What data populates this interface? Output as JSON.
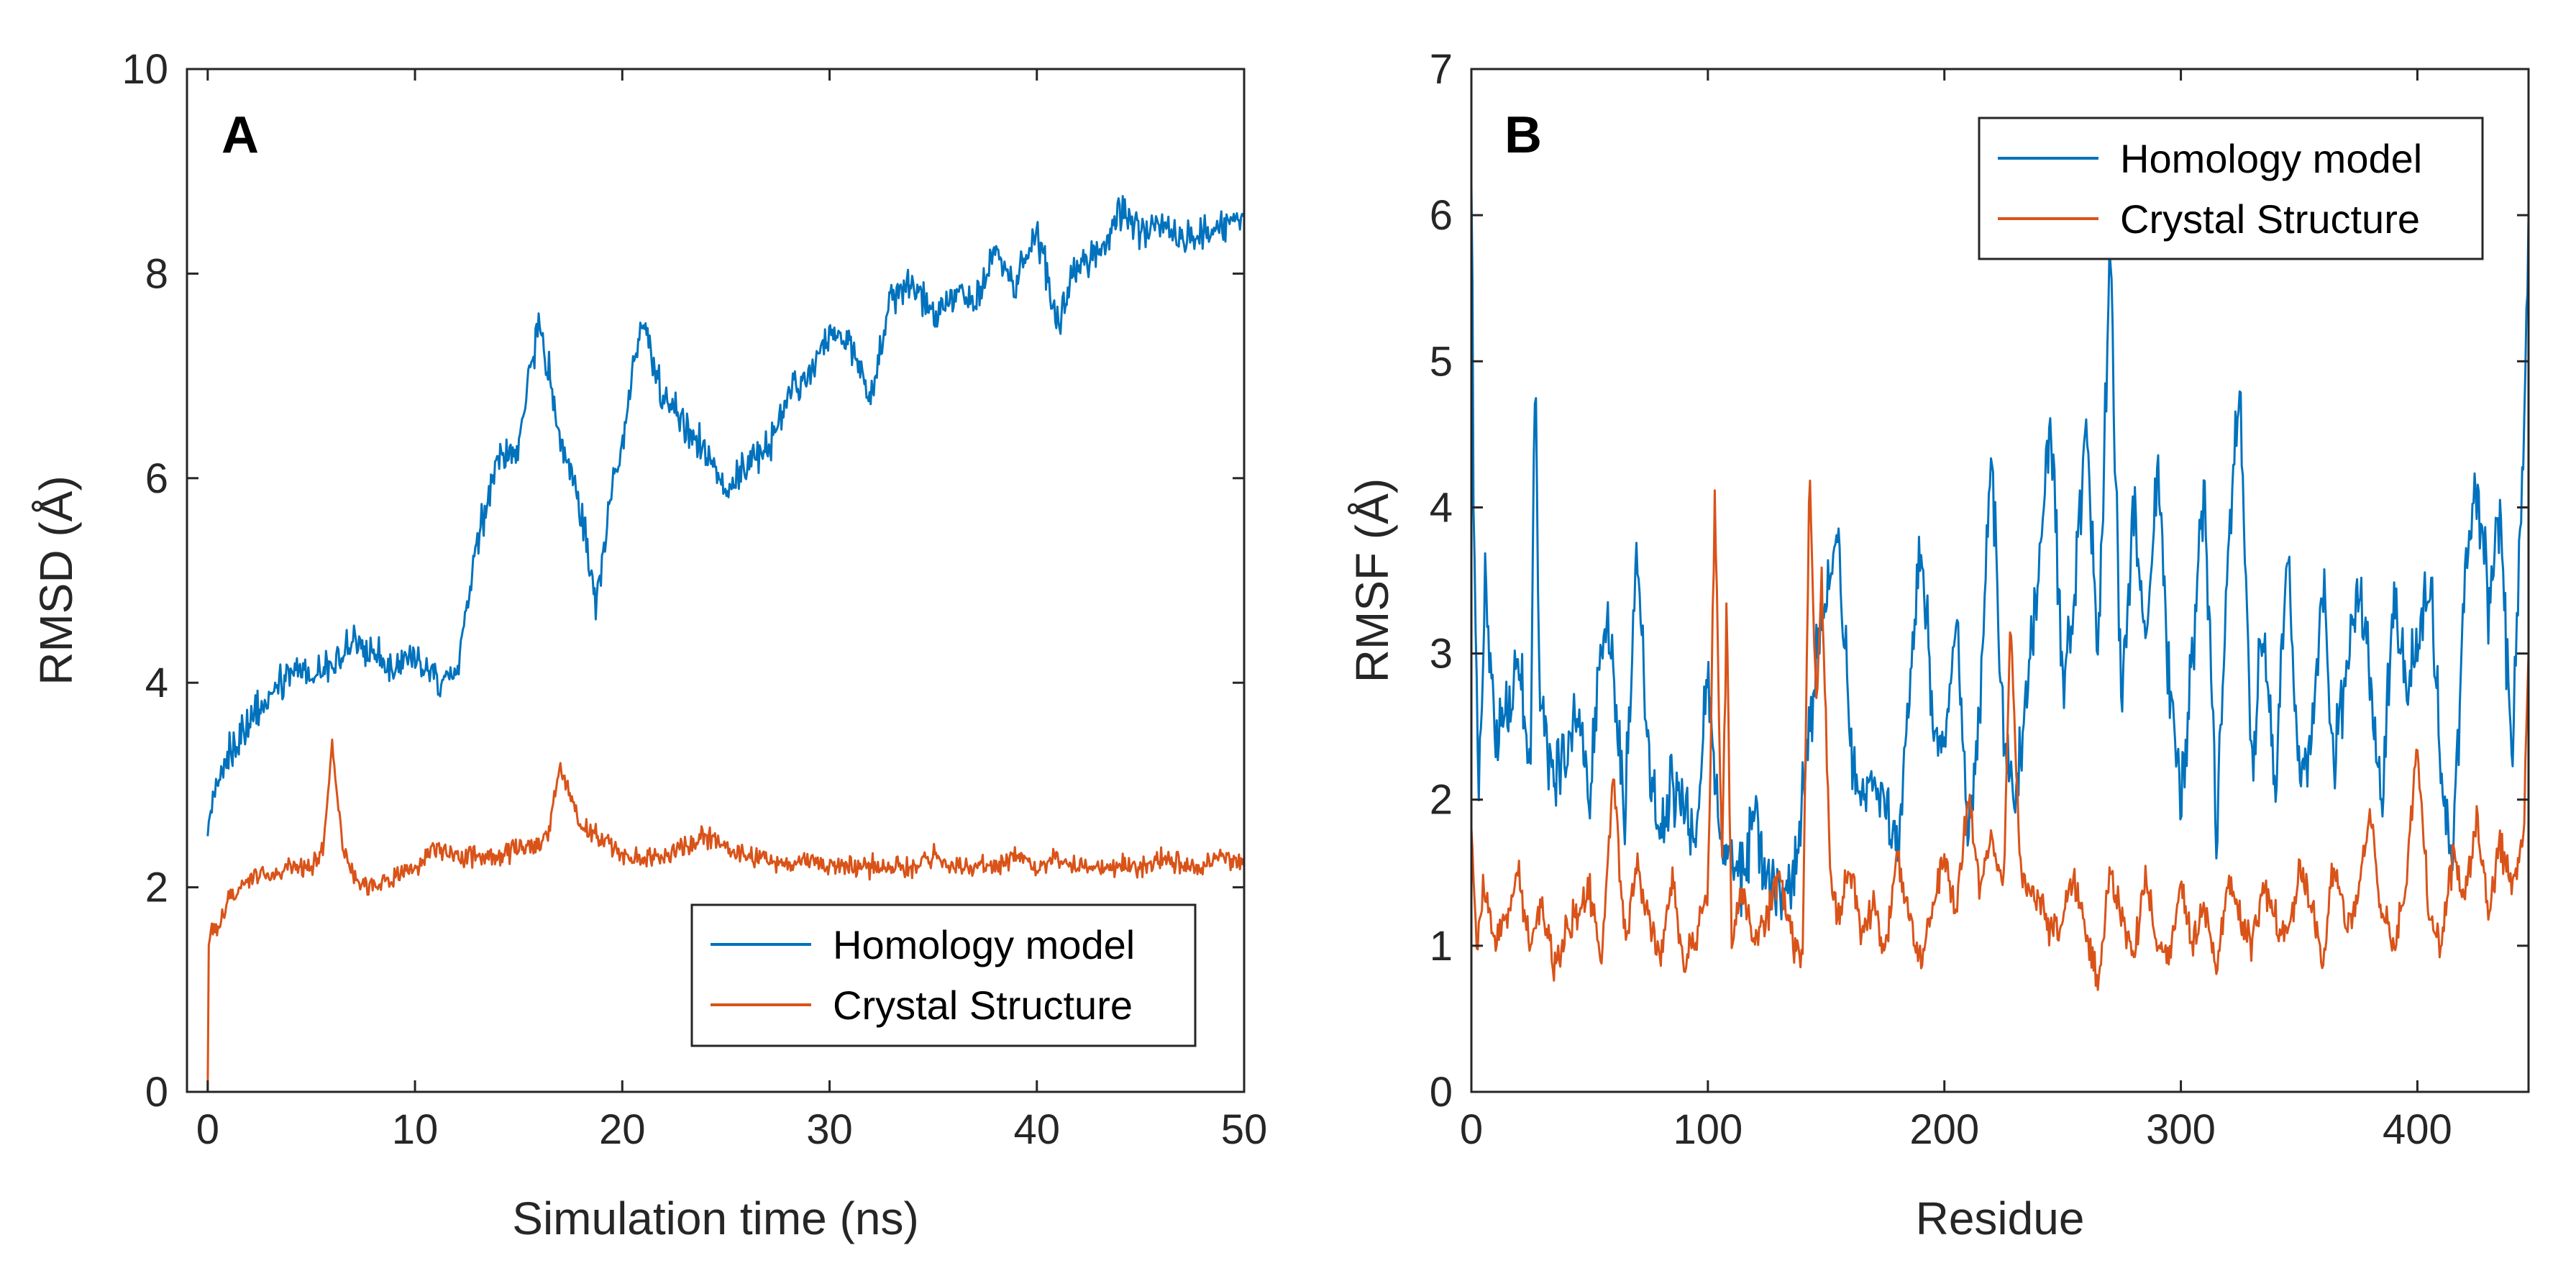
{
  "chart_data": [
    {
      "type": "line",
      "panel_label": "A",
      "xlabel": "Simulation time (ns)",
      "ylabel": "RMSD (Å)",
      "xlim": [
        -1,
        50
      ],
      "ylim": [
        0,
        10
      ],
      "xticks": [
        0,
        10,
        20,
        30,
        40,
        50
      ],
      "yticks": [
        0,
        2,
        4,
        6,
        8,
        10
      ],
      "grid": false,
      "legend_position": "bottom-right",
      "series": [
        {
          "name": "Homology model",
          "color": "#0072BD",
          "noise": 0.18,
          "x": [
            0,
            0.3,
            1,
            2,
            3,
            4,
            5,
            6,
            7,
            8,
            9,
            10,
            11,
            12,
            13,
            14,
            15,
            16,
            17,
            18,
            18.7,
            19.5,
            20,
            21,
            22,
            23,
            24,
            25,
            26,
            27,
            28,
            29,
            30,
            31,
            32,
            33,
            34,
            35,
            36,
            37,
            38,
            39,
            40,
            41,
            42,
            43,
            44,
            45,
            46,
            47,
            48,
            49,
            50
          ],
          "values": [
            2.5,
            3.0,
            3.3,
            3.6,
            3.9,
            4.1,
            4.1,
            4.2,
            4.4,
            4.3,
            4.1,
            4.3,
            4.0,
            4.1,
            5.4,
            6.2,
            6.3,
            7.6,
            6.4,
            5.7,
            4.8,
            5.8,
            6.4,
            7.6,
            6.8,
            6.5,
            6.3,
            5.9,
            6.1,
            6.3,
            6.8,
            7.0,
            7.4,
            7.3,
            6.8,
            7.8,
            7.9,
            7.6,
            7.8,
            7.7,
            8.2,
            7.9,
            8.4,
            7.5,
            8.1,
            8.2,
            8.6,
            8.4,
            8.5,
            8.3,
            8.4,
            8.5,
            8.6
          ]
        },
        {
          "name": "Crystal Structure",
          "color": "#D95319",
          "noise": 0.1,
          "x": [
            0,
            0.05,
            0.2,
            0.5,
            1,
            2,
            3,
            4,
            5,
            5.6,
            6,
            6.5,
            7,
            8,
            9,
            10,
            11,
            12,
            13,
            14,
            15,
            16,
            16.5,
            17,
            18,
            19,
            20,
            21,
            22,
            23,
            24,
            25,
            26,
            27,
            28,
            29,
            30,
            31,
            32,
            33,
            34,
            35,
            36,
            37,
            38,
            39,
            40,
            41,
            42,
            43,
            44,
            45,
            46,
            47,
            48,
            49,
            50
          ],
          "values": [
            0.0,
            1.4,
            1.6,
            1.6,
            1.9,
            2.1,
            2.1,
            2.2,
            2.2,
            2.4,
            3.4,
            2.4,
            2.1,
            2.0,
            2.1,
            2.2,
            2.4,
            2.3,
            2.3,
            2.3,
            2.4,
            2.4,
            2.6,
            3.2,
            2.6,
            2.5,
            2.3,
            2.3,
            2.3,
            2.4,
            2.5,
            2.4,
            2.3,
            2.3,
            2.2,
            2.3,
            2.2,
            2.2,
            2.2,
            2.2,
            2.2,
            2.3,
            2.2,
            2.2,
            2.2,
            2.3,
            2.2,
            2.3,
            2.2,
            2.2,
            2.2,
            2.2,
            2.3,
            2.2,
            2.2,
            2.3,
            2.2
          ]
        }
      ]
    },
    {
      "type": "line",
      "panel_label": "B",
      "xlabel": "Residue",
      "ylabel": "RMSF (Å)",
      "xlim": [
        0,
        447
      ],
      "ylim": [
        0,
        7
      ],
      "xticks": [
        0,
        100,
        200,
        300,
        400
      ],
      "yticks": [
        0,
        1,
        2,
        3,
        4,
        5,
        6,
        7
      ],
      "grid": false,
      "legend_position": "top-right",
      "series": [
        {
          "name": "Homology model",
          "color": "#0072BD",
          "noise": 0.25,
          "x": [
            0,
            1,
            3,
            6,
            10,
            15,
            20,
            25,
            27,
            29,
            35,
            40,
            45,
            50,
            55,
            60,
            65,
            70,
            75,
            80,
            85,
            90,
            95,
            100,
            105,
            110,
            115,
            120,
            125,
            130,
            135,
            140,
            145,
            150,
            155,
            160,
            165,
            170,
            175,
            180,
            185,
            190,
            195,
            200,
            205,
            210,
            215,
            220,
            225,
            230,
            235,
            240,
            245,
            250,
            255,
            260,
            265,
            270,
            275,
            280,
            285,
            290,
            295,
            300,
            305,
            310,
            315,
            320,
            325,
            330,
            335,
            340,
            345,
            350,
            355,
            360,
            365,
            370,
            375,
            380,
            385,
            390,
            395,
            400,
            405,
            410,
            415,
            420,
            425,
            430,
            435,
            440,
            445,
            447
          ],
          "values": [
            6.2,
            4.0,
            2.0,
            3.5,
            2.4,
            2.6,
            3.0,
            2.2,
            5.1,
            2.6,
            2.1,
            2.3,
            2.6,
            2.0,
            3.2,
            2.9,
            1.9,
            3.7,
            2.2,
            1.8,
            2.1,
            1.9,
            1.7,
            2.9,
            1.7,
            1.6,
            1.5,
            1.9,
            1.4,
            1.5,
            1.3,
            2.0,
            2.9,
            3.4,
            3.9,
            2.4,
            2.0,
            2.2,
            2.0,
            1.6,
            2.6,
            3.8,
            2.6,
            2.4,
            3.2,
            1.8,
            2.6,
            4.4,
            2.4,
            2.0,
            2.8,
            3.6,
            4.6,
            2.8,
            3.4,
            4.6,
            3.0,
            5.8,
            2.6,
            4.1,
            3.0,
            4.3,
            2.8,
            2.0,
            3.0,
            4.2,
            1.8,
            3.8,
            4.7,
            2.2,
            3.2,
            2.0,
            3.7,
            2.2,
            2.4,
            3.4,
            2.2,
            3.0,
            3.5,
            2.8,
            1.9,
            3.4,
            2.8,
            3.0,
            3.6,
            2.2,
            1.6,
            3.4,
            4.1,
            3.4,
            4.0,
            2.2,
            4.5,
            6.0
          ]
        },
        {
          "name": "Crystal Structure",
          "color": "#D95319",
          "noise": 0.12,
          "x": [
            0,
            2,
            5,
            10,
            15,
            20,
            25,
            30,
            35,
            40,
            45,
            50,
            55,
            60,
            65,
            70,
            75,
            80,
            85,
            90,
            95,
            100,
            103,
            106,
            108,
            110,
            115,
            120,
            125,
            130,
            135,
            140,
            143,
            146,
            148,
            152,
            155,
            160,
            165,
            170,
            175,
            180,
            185,
            190,
            195,
            200,
            205,
            210,
            215,
            220,
            225,
            228,
            232,
            240,
            245,
            250,
            255,
            260,
            265,
            270,
            275,
            280,
            285,
            290,
            295,
            300,
            305,
            310,
            315,
            320,
            325,
            330,
            335,
            340,
            345,
            350,
            355,
            360,
            365,
            370,
            375,
            380,
            385,
            390,
            395,
            400,
            405,
            410,
            415,
            420,
            425,
            430,
            435,
            440,
            445,
            447
          ],
          "values": [
            1.8,
            1.0,
            1.4,
            1.0,
            1.2,
            1.5,
            1.0,
            1.3,
            0.8,
            1.1,
            1.2,
            1.4,
            0.9,
            2.2,
            1.0,
            1.6,
            1.2,
            0.9,
            1.5,
            0.8,
            1.1,
            1.3,
            4.1,
            1.5,
            3.4,
            1.0,
            1.4,
            1.0,
            1.2,
            1.5,
            1.1,
            0.9,
            4.2,
            2.6,
            3.6,
            1.4,
            1.2,
            1.5,
            1.1,
            1.3,
            1.0,
            1.6,
            1.2,
            0.9,
            1.3,
            1.6,
            1.2,
            2.0,
            1.4,
            1.7,
            1.4,
            3.2,
            1.5,
            1.3,
            1.1,
            1.2,
            1.5,
            1.1,
            0.7,
            1.5,
            1.2,
            0.9,
            1.5,
            1.0,
            0.9,
            1.4,
            1.0,
            1.3,
            0.8,
            1.5,
            1.2,
            1.0,
            1.4,
            1.2,
            1.0,
            1.5,
            1.3,
            0.9,
            1.6,
            1.1,
            1.4,
            1.9,
            1.2,
            1.0,
            1.4,
            2.4,
            1.2,
            1.0,
            1.6,
            1.3,
            1.9,
            1.2,
            1.7,
            1.4,
            1.8,
            3.0
          ]
        }
      ]
    }
  ]
}
